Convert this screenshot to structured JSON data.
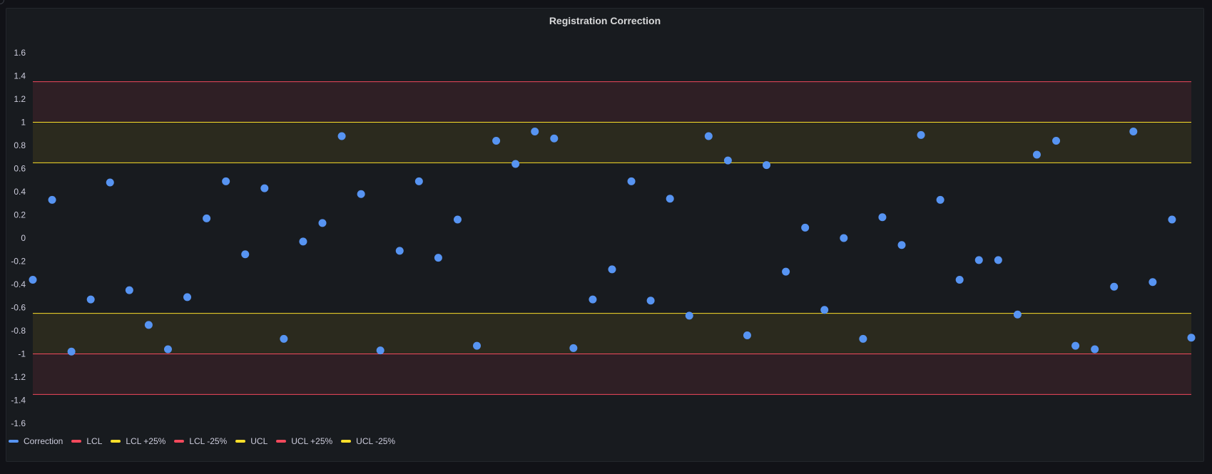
{
  "panel": {
    "title": "Registration Correction"
  },
  "colors": {
    "correction": "#5794f2",
    "lcl": "#f2495c",
    "lcl_plus_25": "#fade2a",
    "lcl_minus_25": "#f2495c",
    "ucl": "#fade2a",
    "ucl_plus_25": "#f2495c",
    "ucl_minus_25": "#fade2a",
    "red_band": "#2f1f25",
    "yellow_band": "#2b2a1e"
  },
  "chart_data": {
    "type": "scatter",
    "title": "Registration Correction",
    "ylim": [
      -1.75,
      1.75
    ],
    "y_ticks": [
      "1.6",
      "1.4",
      "1.2",
      "1",
      "0.8",
      "0.6",
      "0.4",
      "0.2",
      "0",
      "-0.2",
      "-0.4",
      "-0.6",
      "-0.8",
      "-1",
      "-1.2",
      "-1.4",
      "-1.6"
    ],
    "y_tick_values": [
      1.6,
      1.4,
      1.2,
      1,
      0.8,
      0.6,
      0.4,
      0.2,
      0,
      -0.2,
      -0.4,
      -0.6,
      -0.8,
      -1,
      -1.2,
      -1.4,
      -1.6
    ],
    "grid": false,
    "legend_position": "bottom-left",
    "series": [
      {
        "name": "Correction",
        "values": [
          -0.36,
          0.33,
          -0.98,
          -0.53,
          0.48,
          -0.45,
          -0.75,
          -0.96,
          -0.51,
          0.17,
          0.49,
          -0.14,
          0.43,
          -0.87,
          -0.03,
          0.13,
          0.88,
          0.38,
          -0.97,
          -0.11,
          0.49,
          -0.17,
          0.16,
          -0.93,
          0.84,
          0.64,
          0.92,
          0.86,
          -0.95,
          -0.53,
          -0.27,
          0.49,
          -0.54,
          0.34,
          -0.67,
          0.88,
          0.67,
          -0.84,
          0.63,
          -0.29,
          0.09,
          -0.62,
          0.0,
          -0.87,
          0.18,
          -0.06,
          0.89,
          0.33,
          -0.36,
          -0.19,
          -0.19,
          -0.66,
          0.72,
          0.84,
          -0.93,
          -0.96,
          -0.42,
          0.92,
          -0.38,
          0.16,
          -0.86
        ]
      }
    ],
    "control_limits": [
      {
        "name": "LCL",
        "value": -1.0,
        "color_key": "lcl"
      },
      {
        "name": "LCL +25%",
        "value": -0.65,
        "color_key": "lcl_plus_25"
      },
      {
        "name": "LCL -25%",
        "value": -1.35,
        "color_key": "lcl_minus_25"
      },
      {
        "name": "UCL",
        "value": 1.0,
        "color_key": "ucl"
      },
      {
        "name": "UCL +25%",
        "value": 1.35,
        "color_key": "ucl_plus_25"
      },
      {
        "name": "UCL -25%",
        "value": 0.65,
        "color_key": "ucl_minus_25"
      }
    ],
    "bands": [
      {
        "from": 1.0,
        "to": 1.35,
        "color_key": "red_band"
      },
      {
        "from": 0.65,
        "to": 1.0,
        "color_key": "yellow_band"
      },
      {
        "from": -1.0,
        "to": -0.65,
        "color_key": "yellow_band"
      },
      {
        "from": -1.35,
        "to": -1.0,
        "color_key": "red_band"
      }
    ]
  },
  "legend": [
    {
      "label": "Correction",
      "color_key": "correction"
    },
    {
      "label": "LCL",
      "color_key": "lcl"
    },
    {
      "label": "LCL +25%",
      "color_key": "lcl_plus_25"
    },
    {
      "label": "LCL -25%",
      "color_key": "lcl_minus_25"
    },
    {
      "label": "UCL",
      "color_key": "ucl"
    },
    {
      "label": "UCL +25%",
      "color_key": "ucl_plus_25"
    },
    {
      "label": "UCL -25%",
      "color_key": "ucl_minus_25"
    }
  ]
}
